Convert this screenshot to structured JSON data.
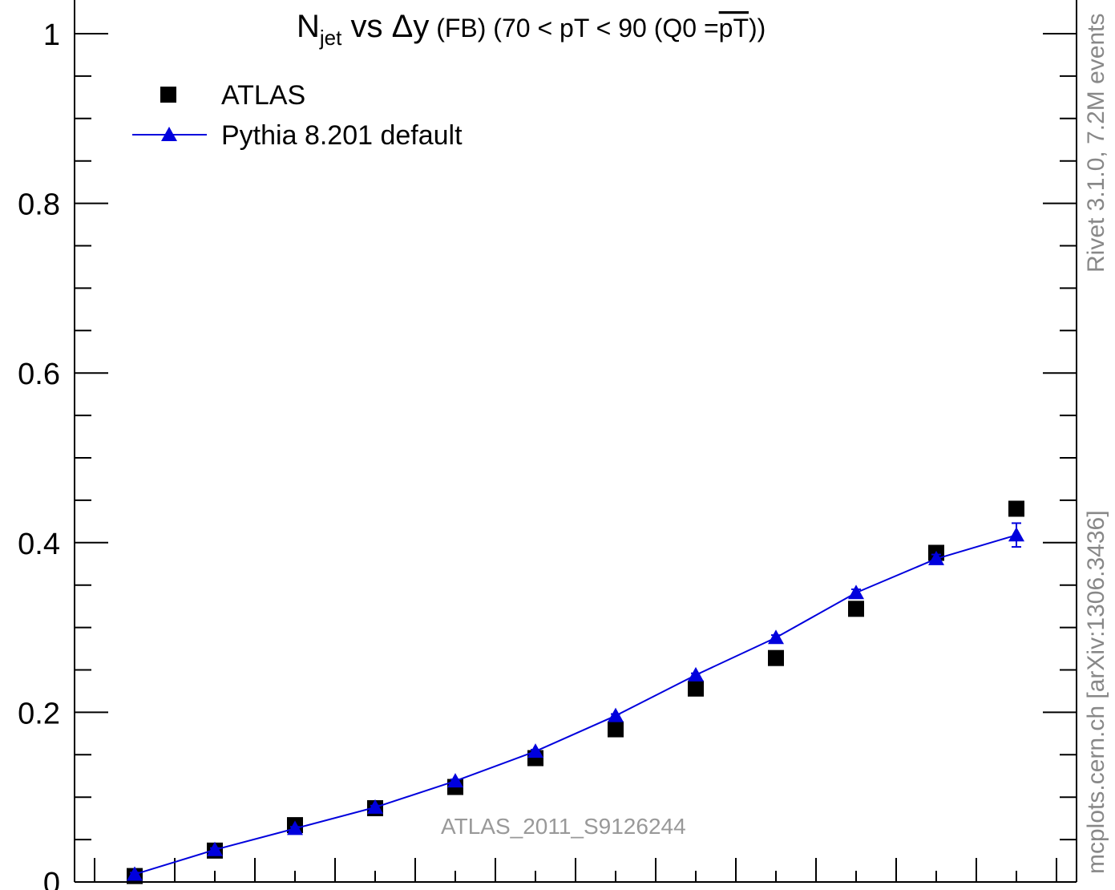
{
  "chart_data": {
    "type": "scatter",
    "title": {
      "n": "N",
      "jet_sub": "jet",
      "vs_part": " vs ",
      "delta": "Δy",
      "fb": " (FB)",
      "rest_prefix": " (70 < pT <  90 (Q0 =",
      "overline": "pT",
      "rest_suffix": "))"
    },
    "ylim": [
      0,
      1.05
    ],
    "yticks": [
      {
        "value": 1,
        "label": "1"
      },
      {
        "value": 0.8,
        "label": "0.8"
      },
      {
        "value": 0.6,
        "label": "0.6"
      },
      {
        "value": 0.4,
        "label": "0.4"
      },
      {
        "value": 0.2,
        "label": "0.2"
      },
      {
        "value": 0,
        "label": "0"
      }
    ],
    "x": [
      0.5,
      1.5,
      2.5,
      3.5,
      4.5,
      5.5,
      6.5,
      7.5,
      8.5,
      9.5,
      10.5,
      11.5
    ],
    "series": [
      {
        "name": "ATLAS",
        "marker": "square",
        "color": "#000000",
        "values": [
          0.007,
          0.037,
          0.067,
          0.087,
          0.112,
          0.146,
          0.18,
          0.228,
          0.264,
          0.322,
          0.388,
          0.44
        ]
      },
      {
        "name": "Pythia 8.201 default",
        "marker": "triangle",
        "line": true,
        "color": "#0000dd",
        "values": [
          0.009,
          0.038,
          0.063,
          0.088,
          0.119,
          0.154,
          0.196,
          0.244,
          0.288,
          0.341,
          0.381,
          0.409
        ],
        "errors": [
          0.002,
          0.002,
          0.002,
          0.002,
          0.002,
          0.002,
          0.002,
          0.002,
          0.003,
          0.004,
          0.005,
          0.014
        ]
      }
    ],
    "legend_position": "top-left",
    "grid": false,
    "watermark": "ATLAS_2011_S9126244",
    "side_label_top": "Rivet 3.1.0,  7.2M events",
    "side_label_bottom": "mcplots.cern.ch [arXiv:1306.3436]"
  }
}
